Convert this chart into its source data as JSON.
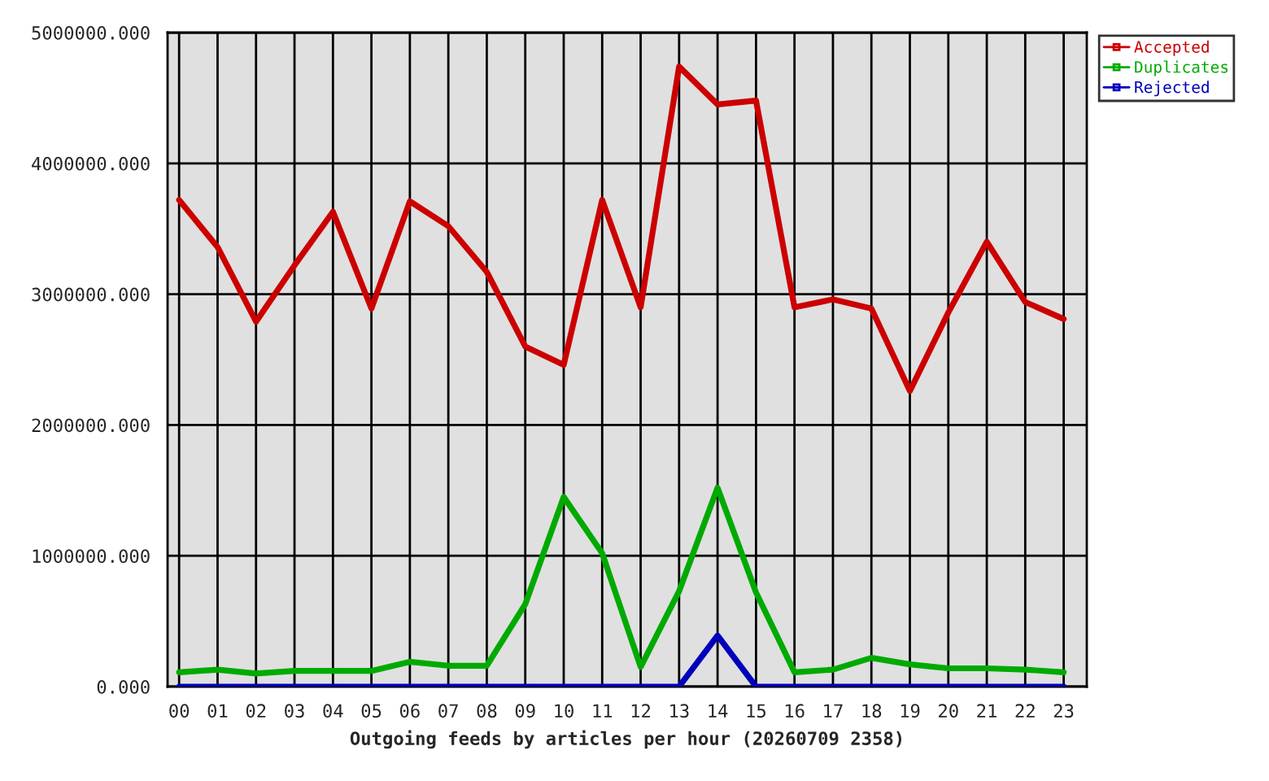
{
  "chart_data": {
    "type": "line",
    "xlabel": "Outgoing feeds by articles per hour (20260709 2358)",
    "categories": [
      "00",
      "01",
      "02",
      "03",
      "04",
      "05",
      "06",
      "07",
      "08",
      "09",
      "10",
      "11",
      "12",
      "13",
      "14",
      "15",
      "16",
      "17",
      "18",
      "19",
      "20",
      "21",
      "22",
      "23"
    ],
    "series": [
      {
        "name": "Accepted",
        "color": "#cc0000",
        "values": [
          3720000,
          3360000,
          2790000,
          3220000,
          3630000,
          2890000,
          3710000,
          3520000,
          3170000,
          2600000,
          2460000,
          3720000,
          2900000,
          4740000,
          4450000,
          4480000,
          2900000,
          2960000,
          2890000,
          2260000,
          2860000,
          3400000,
          2940000,
          2810000
        ]
      },
      {
        "name": "Duplicates",
        "color": "#00aa00",
        "values": [
          110000,
          130000,
          100000,
          120000,
          120000,
          120000,
          190000,
          160000,
          160000,
          630000,
          1450000,
          1020000,
          150000,
          730000,
          1520000,
          720000,
          110000,
          130000,
          220000,
          170000,
          140000,
          140000,
          130000,
          110000
        ]
      },
      {
        "name": "Rejected",
        "color": "#0000bb",
        "values": [
          0,
          0,
          0,
          0,
          0,
          0,
          0,
          0,
          0,
          0,
          0,
          0,
          0,
          0,
          390000,
          0,
          0,
          0,
          0,
          0,
          0,
          0,
          0,
          0
        ]
      }
    ],
    "ylim": [
      0,
      5000000
    ],
    "yticks": [
      {
        "value": 0,
        "label": "0.000"
      },
      {
        "value": 1000000,
        "label": "1000000.000"
      },
      {
        "value": 2000000,
        "label": "2000000.000"
      },
      {
        "value": 3000000,
        "label": "3000000.000"
      },
      {
        "value": 4000000,
        "label": "4000000.000"
      },
      {
        "value": 5000000,
        "label": "5000000.000"
      }
    ],
    "grid": true,
    "legend": "top right",
    "marker": "none",
    "line_style": "solid"
  }
}
